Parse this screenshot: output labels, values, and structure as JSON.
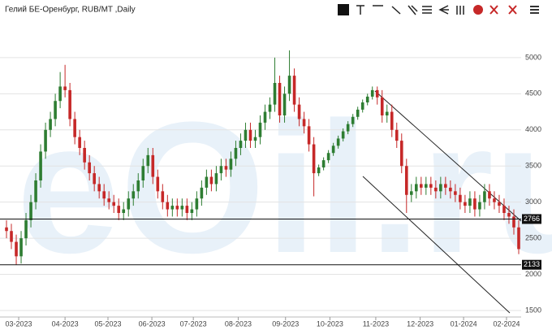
{
  "chart_data": {
    "type": "candlestick",
    "title": "Гелий БЕ-Оренбург, RUB/MT ,Daily",
    "watermark": "eOil.ru",
    "open": [
      2650,
      2600,
      2450,
      2250,
      2500,
      2750,
      3000,
      3300,
      3700,
      4000,
      4150,
      4400,
      4600,
      4550,
      4150,
      3900,
      3750,
      3550,
      3400,
      3250,
      3150,
      3050,
      3000,
      2950,
      2850,
      2900,
      3050,
      3150,
      3300,
      3500,
      3650,
      3350,
      3150,
      3000,
      2900,
      2950,
      2900,
      2950,
      2850,
      2900,
      3050,
      3200,
      3350,
      3250,
      3400,
      3500,
      3450,
      3600,
      3750,
      3850,
      4000,
      3850,
      3900,
      4100,
      4250,
      4350,
      4650,
      4200,
      4500,
      4750,
      4350,
      4150,
      4050,
      3800,
      3400,
      3480,
      3580,
      3680,
      3780,
      3880,
      3980,
      4080,
      4180,
      4280,
      4380,
      4460,
      4550,
      4450,
      4200,
      4250,
      4000,
      3850,
      3500,
      3100,
      3150,
      3250,
      3200,
      3250,
      3200,
      3150,
      3250,
      3200,
      3150,
      3100,
      3000,
      2950,
      3050,
      2900,
      3000,
      3150,
      3050,
      3000,
      2950,
      2850,
      2800,
      2650
    ],
    "high": [
      2750,
      2700,
      2550,
      2600,
      2850,
      3100,
      3400,
      3800,
      4100,
      4250,
      4500,
      4800,
      4900,
      4650,
      4250,
      4000,
      3850,
      3650,
      3500,
      3350,
      3250,
      3150,
      3100,
      3050,
      3000,
      3150,
      3250,
      3400,
      3600,
      3750,
      3750,
      3450,
      3250,
      3100,
      3050,
      3050,
      3050,
      3050,
      3000,
      3150,
      3300,
      3450,
      3450,
      3500,
      3600,
      3600,
      3700,
      3850,
      3950,
      4100,
      4100,
      4000,
      4200,
      4350,
      4450,
      5000,
      4750,
      4600,
      5100,
      4850,
      4450,
      4250,
      4150,
      3900,
      3520,
      3620,
      3720,
      3820,
      3920,
      4020,
      4120,
      4220,
      4320,
      4420,
      4500,
      4600,
      4600,
      4550,
      4350,
      4350,
      4100,
      3950,
      3600,
      3250,
      3350,
      3350,
      3350,
      3350,
      3300,
      3350,
      3350,
      3300,
      3250,
      3200,
      3100,
      3150,
      3150,
      3100,
      3250,
      3250,
      3150,
      3100,
      3050,
      2950,
      2900,
      2750
    ],
    "low": [
      2500,
      2350,
      2133,
      2150,
      2400,
      2650,
      2900,
      3200,
      3600,
      3900,
      4050,
      4300,
      4450,
      4050,
      3800,
      3650,
      3450,
      3300,
      3150,
      3050,
      2950,
      2900,
      2850,
      2750,
      2750,
      2800,
      2950,
      3050,
      3200,
      3400,
      3250,
      3050,
      2900,
      2800,
      2800,
      2800,
      2800,
      2750,
      2750,
      2800,
      2950,
      3100,
      3150,
      3150,
      3300,
      3350,
      3350,
      3500,
      3650,
      3750,
      3750,
      3750,
      3800,
      4000,
      4150,
      4250,
      4100,
      4100,
      4400,
      4250,
      4050,
      3950,
      3700,
      3080,
      3360,
      3440,
      3540,
      3640,
      3740,
      3840,
      3940,
      4040,
      4140,
      4240,
      4340,
      4420,
      4350,
      4100,
      4100,
      3900,
      3750,
      3400,
      2850,
      3000,
      3050,
      3100,
      3100,
      3100,
      3050,
      3050,
      3100,
      3050,
      3000,
      2900,
      2850,
      2850,
      2800,
      2800,
      2900,
      2950,
      2900,
      2850,
      2750,
      2700,
      2550,
      2280
    ],
    "close": [
      2600,
      2450,
      2250,
      2500,
      2750,
      3000,
      3300,
      3700,
      4000,
      4150,
      4400,
      4600,
      4550,
      4150,
      3900,
      3750,
      3550,
      3400,
      3250,
      3150,
      3050,
      3000,
      2950,
      2850,
      2900,
      3050,
      3150,
      3300,
      3500,
      3650,
      3350,
      3150,
      3000,
      2900,
      2950,
      2900,
      2950,
      2850,
      2900,
      3050,
      3200,
      3350,
      3250,
      3400,
      3500,
      3450,
      3600,
      3750,
      3850,
      4000,
      3850,
      3900,
      4100,
      4250,
      4350,
      4650,
      4200,
      4500,
      4750,
      4350,
      4150,
      4050,
      3800,
      3400,
      3480,
      3580,
      3680,
      3780,
      3880,
      3980,
      4080,
      4180,
      4280,
      4380,
      4460,
      4550,
      4450,
      4200,
      4250,
      4000,
      3850,
      3500,
      3100,
      3150,
      3250,
      3200,
      3250,
      3200,
      3150,
      3250,
      3200,
      3150,
      3100,
      3000,
      2950,
      3050,
      2900,
      3000,
      3150,
      3050,
      3000,
      2950,
      2850,
      2800,
      2650,
      2350
    ],
    "up_color": "#2e7d32",
    "down_color": "#c62828",
    "levels": [
      2766,
      2133
    ],
    "xlim": [
      0,
      106
    ],
    "xticks": [
      {
        "value": 3,
        "label": "03-2023"
      },
      {
        "value": 12.5,
        "label": "04-2023"
      },
      {
        "value": 21.3,
        "label": "05-2023"
      },
      {
        "value": 30.3,
        "label": "06-2023"
      },
      {
        "value": 38.8,
        "label": "07-2023"
      },
      {
        "value": 48,
        "label": "08-2023"
      },
      {
        "value": 57.7,
        "label": "09-2023"
      },
      {
        "value": 66.8,
        "label": "10-2023"
      },
      {
        "value": 76.2,
        "label": "11-2023"
      },
      {
        "value": 85.3,
        "label": "12-2023"
      },
      {
        "value": 94.2,
        "label": "01-2024"
      },
      {
        "value": 103,
        "label": "02-2024"
      }
    ],
    "ylim": [
      1410,
      5460
    ],
    "yticks": [
      1500,
      2000,
      2500,
      3000,
      3500,
      4000,
      4500,
      5000
    ],
    "grid": true
  }
}
